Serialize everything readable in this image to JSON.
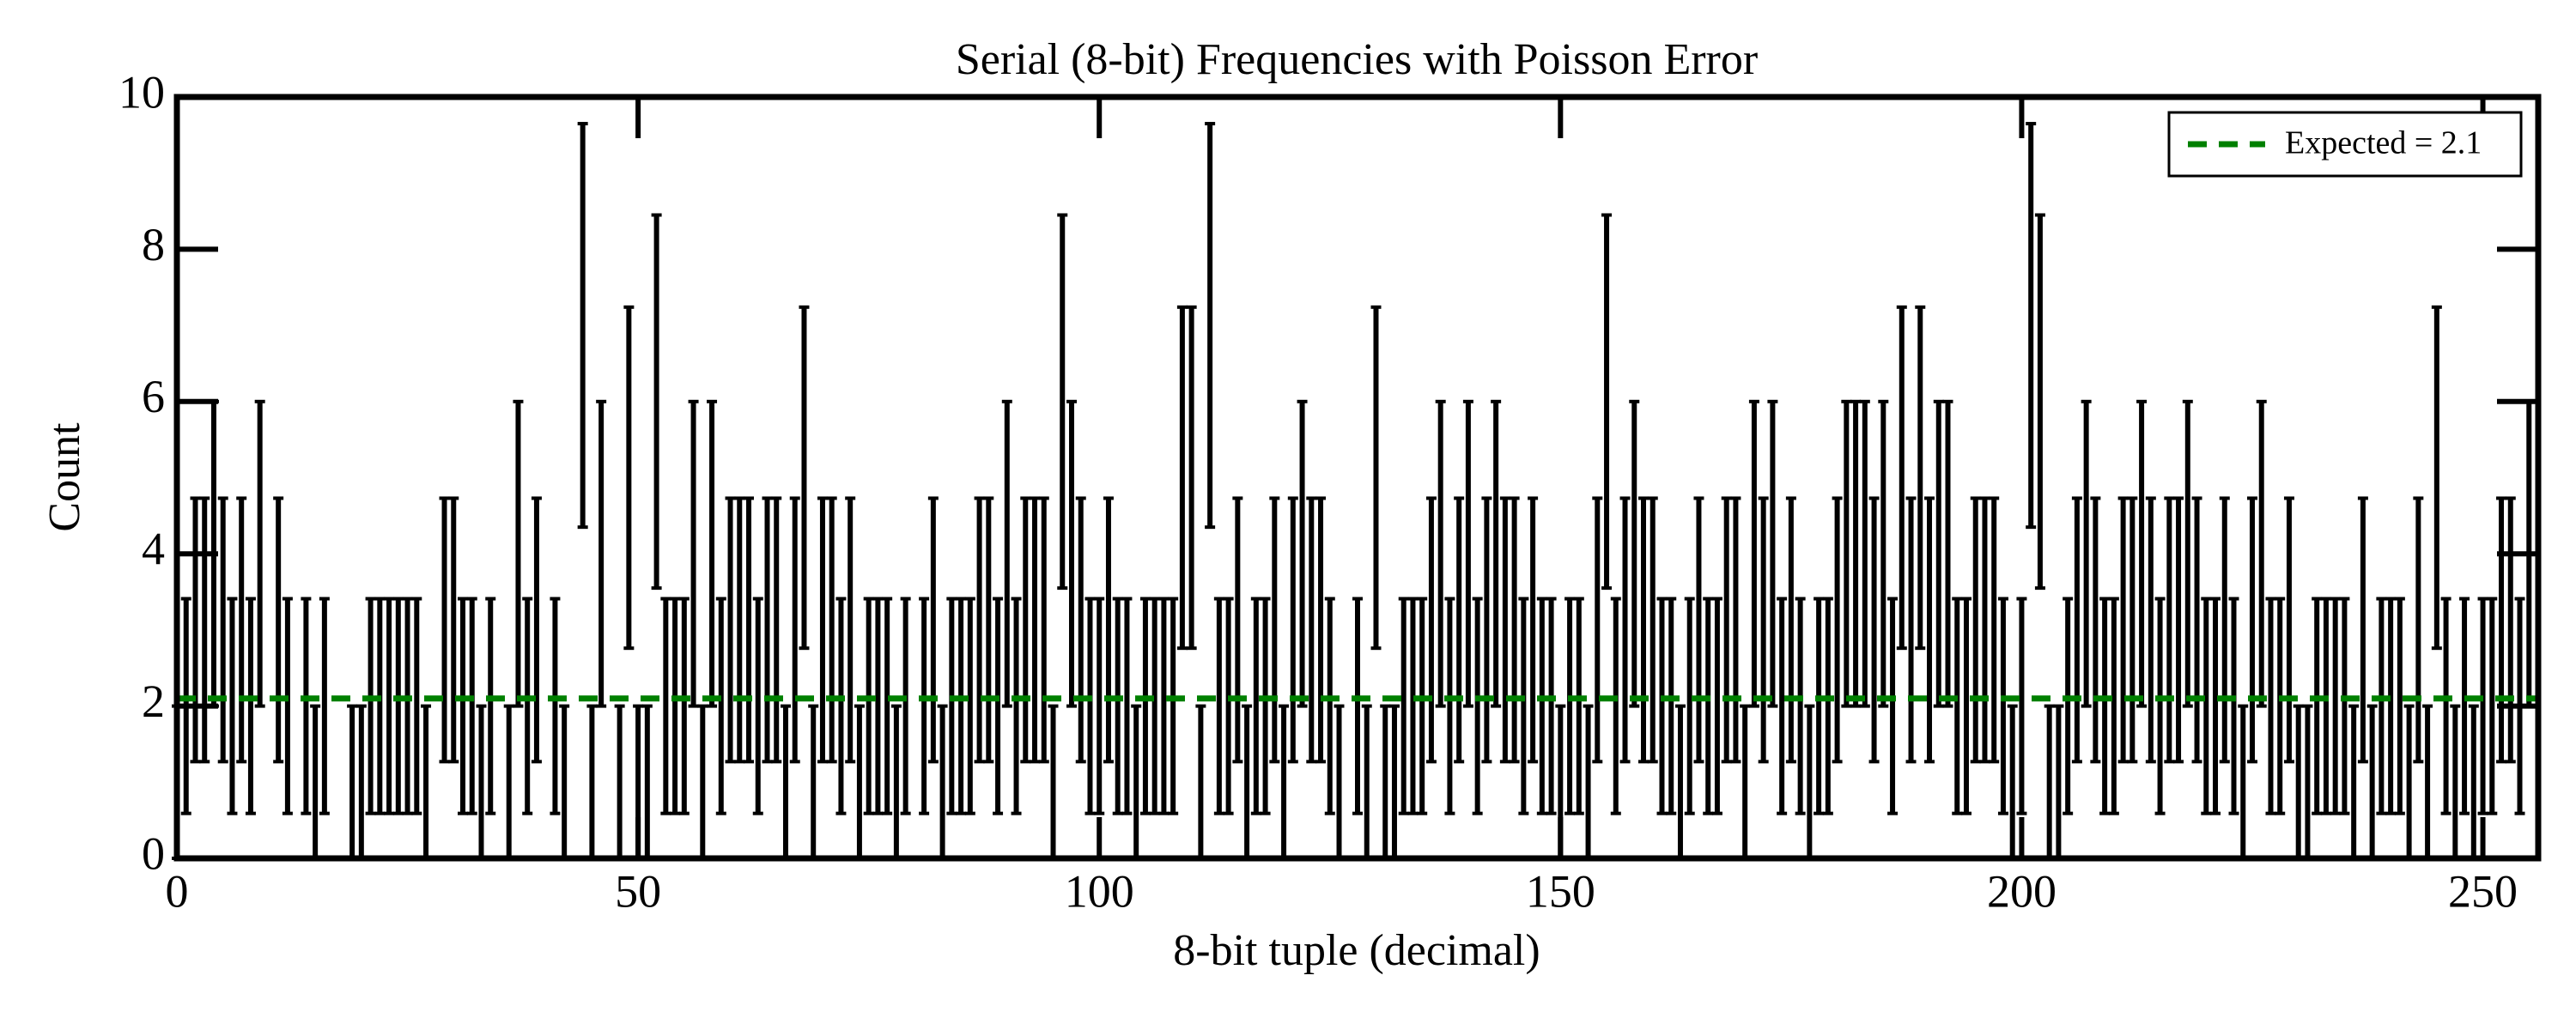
{
  "chart_data": {
    "type": "errorbar",
    "title": "Serial (8-bit) Frequencies with Poisson Error",
    "xlabel": "8-bit tuple (decimal)",
    "ylabel": "Count",
    "xlim": [
      0,
      256
    ],
    "ylim": [
      0,
      10
    ],
    "xticks": [
      0,
      50,
      100,
      150,
      200,
      250
    ],
    "yticks": [
      0,
      2,
      4,
      6,
      8,
      10
    ],
    "color": "#000000",
    "legend": "upper right",
    "reference": {
      "value": 2.1,
      "label": "Expected = 2.1",
      "color": "#008000"
    },
    "x": [
      0,
      1,
      2,
      3,
      4,
      5,
      6,
      7,
      8,
      9,
      10,
      11,
      12,
      13,
      14,
      15,
      16,
      17,
      18,
      19,
      20,
      21,
      22,
      23,
      24,
      25,
      26,
      27,
      28,
      29,
      30,
      31,
      32,
      33,
      34,
      35,
      36,
      37,
      38,
      39,
      40,
      41,
      42,
      43,
      44,
      45,
      46,
      47,
      48,
      49,
      50,
      51,
      52,
      53,
      54,
      55,
      56,
      57,
      58,
      59,
      60,
      61,
      62,
      63,
      64,
      65,
      66,
      67,
      68,
      69,
      70,
      71,
      72,
      73,
      74,
      75,
      76,
      77,
      78,
      79,
      80,
      81,
      82,
      83,
      84,
      85,
      86,
      87,
      88,
      89,
      90,
      91,
      92,
      93,
      94,
      95,
      96,
      97,
      98,
      99,
      100,
      101,
      102,
      103,
      104,
      105,
      106,
      107,
      108,
      109,
      110,
      111,
      112,
      113,
      114,
      115,
      116,
      117,
      118,
      119,
      120,
      121,
      122,
      123,
      124,
      125,
      126,
      127,
      128,
      129,
      130,
      131,
      132,
      133,
      134,
      135,
      136,
      137,
      138,
      139,
      140,
      141,
      142,
      143,
      144,
      145,
      146,
      147,
      148,
      149,
      150,
      151,
      152,
      153,
      154,
      155,
      156,
      157,
      158,
      159,
      160,
      161,
      162,
      163,
      164,
      165,
      166,
      167,
      168,
      169,
      170,
      171,
      172,
      173,
      174,
      175,
      176,
      177,
      178,
      179,
      180,
      181,
      182,
      183,
      184,
      185,
      186,
      187,
      188,
      189,
      190,
      191,
      192,
      193,
      194,
      195,
      196,
      197,
      198,
      199,
      200,
      201,
      202,
      203,
      204,
      205,
      206,
      207,
      208,
      209,
      210,
      211,
      212,
      213,
      214,
      215,
      216,
      217,
      218,
      219,
      220,
      221,
      222,
      223,
      224,
      225,
      226,
      227,
      228,
      229,
      230,
      231,
      232,
      233,
      234,
      235,
      236,
      237,
      238,
      239,
      240,
      241,
      242,
      243,
      244,
      245,
      246,
      247,
      248,
      249,
      250,
      251,
      252,
      253,
      254,
      255
    ],
    "values": [
      1,
      2,
      3,
      3,
      4,
      3,
      2,
      3,
      2,
      4,
      0,
      3,
      2,
      0,
      2,
      1,
      2,
      0,
      0,
      1,
      1,
      2,
      2,
      2,
      2,
      2,
      2,
      1,
      0,
      3,
      3,
      2,
      2,
      1,
      2,
      0,
      1,
      4,
      2,
      3,
      0,
      2,
      1,
      0,
      7,
      1,
      4,
      0,
      1,
      5,
      1,
      1,
      6,
      2,
      2,
      2,
      4,
      1,
      4,
      2,
      3,
      3,
      3,
      2,
      3,
      3,
      1,
      3,
      5,
      1,
      3,
      3,
      2,
      3,
      1,
      2,
      2,
      2,
      1,
      2,
      0,
      2,
      3,
      1,
      2,
      2,
      2,
      3,
      3,
      2,
      4,
      2,
      3,
      3,
      3,
      1,
      6,
      4,
      3,
      2,
      2,
      3,
      2,
      2,
      1,
      2,
      2,
      2,
      2,
      5,
      5,
      1,
      7,
      2,
      2,
      3,
      1,
      2,
      2,
      3,
      1,
      3,
      4,
      3,
      3,
      2,
      1,
      0,
      2,
      1,
      5,
      1,
      1,
      2,
      2,
      2,
      3,
      4,
      2,
      3,
      4,
      2,
      3,
      4,
      3,
      3,
      2,
      3,
      2,
      2,
      1,
      2,
      2,
      1,
      3,
      6,
      2,
      3,
      4,
      3,
      3,
      2,
      2,
      1,
      2,
      3,
      2,
      2,
      3,
      3,
      1,
      4,
      3,
      4,
      2,
      3,
      2,
      1,
      2,
      2,
      3,
      4,
      4,
      4,
      3,
      4,
      2,
      5,
      3,
      5,
      3,
      4,
      4,
      2,
      2,
      3,
      3,
      3,
      2,
      1,
      2,
      7,
      6,
      1,
      1,
      2,
      3,
      4,
      3,
      2,
      2,
      3,
      3,
      4,
      3,
      2,
      3,
      3,
      4,
      3,
      2,
      2,
      3,
      2,
      1,
      3,
      4,
      2,
      2,
      3,
      1,
      1,
      2,
      2,
      2,
      2,
      1,
      3,
      1,
      2,
      2,
      2,
      1,
      3,
      1,
      5,
      2,
      1,
      2,
      1,
      2,
      2,
      3,
      3,
      2,
      4
    ],
    "errors": [
      1,
      1.41,
      1.73,
      1.73,
      2,
      1.73,
      1.41,
      1.73,
      1.41,
      2,
      0,
      1.73,
      1.41,
      0,
      1.41,
      1,
      1.41,
      0,
      0,
      1,
      1,
      1.41,
      1.41,
      1.41,
      1.41,
      1.41,
      1.41,
      1,
      0,
      1.73,
      1.73,
      1.41,
      1.41,
      1,
      1.41,
      0,
      1,
      2,
      1.41,
      1.73,
      0,
      1.41,
      1,
      0,
      2.65,
      1,
      2,
      0,
      1,
      2.24,
      1,
      1,
      2.45,
      1.41,
      1.41,
      1.41,
      2,
      1,
      2,
      1.41,
      1.73,
      1.73,
      1.73,
      1.41,
      1.73,
      1.73,
      1,
      1.73,
      2.24,
      1,
      1.73,
      1.73,
      1.41,
      1.73,
      1,
      1.41,
      1.41,
      1.41,
      1,
      1.41,
      0,
      1.41,
      1.73,
      1,
      1.41,
      1.41,
      1.41,
      1.73,
      1.73,
      1.41,
      2,
      1.41,
      1.73,
      1.73,
      1.73,
      1,
      2.45,
      2,
      1.73,
      1.41,
      1.41,
      1.73,
      1.41,
      1.41,
      1,
      1.41,
      1.41,
      1.41,
      1.41,
      2.24,
      2.24,
      1,
      2.65,
      1.41,
      1.41,
      1.73,
      1,
      1.41,
      1.41,
      1.73,
      1,
      1.73,
      2,
      1.73,
      1.73,
      1.41,
      1,
      0,
      1.41,
      1,
      2.24,
      1,
      1,
      1.41,
      1.41,
      1.41,
      1.73,
      2,
      1.41,
      1.73,
      2,
      1.41,
      1.73,
      2,
      1.73,
      1.73,
      1.41,
      1.73,
      1.41,
      1.41,
      1,
      1.41,
      1.41,
      1,
      1.73,
      2.45,
      1.41,
      1.73,
      2,
      1.73,
      1.73,
      1.41,
      1.41,
      1,
      1.41,
      1.73,
      1.41,
      1.41,
      1.73,
      1.73,
      1,
      2,
      1.73,
      2,
      1.41,
      1.73,
      1.41,
      1,
      1.41,
      1.41,
      1.73,
      2,
      2,
      2,
      1.73,
      2,
      1.41,
      2.24,
      1.73,
      2.24,
      1.73,
      2,
      2,
      1.41,
      1.41,
      1.73,
      1.73,
      1.73,
      1.41,
      1,
      1.41,
      2.65,
      2.45,
      1,
      1,
      1.41,
      1.73,
      2,
      1.73,
      1.41,
      1.41,
      1.73,
      1.73,
      2,
      1.73,
      1.41,
      1.73,
      1.73,
      2,
      1.73,
      1.41,
      1.41,
      1.73,
      1.41,
      1,
      1.73,
      2,
      1.41,
      1.41,
      1.73,
      1,
      1,
      1.41,
      1.41,
      1.41,
      1.41,
      1,
      1.73,
      1,
      1.41,
      1.41,
      1.41,
      1,
      1.73,
      1,
      2.24,
      1.41,
      1,
      1.41,
      1,
      1.41,
      1.41,
      1.73,
      1.73,
      1.41,
      2
    ]
  }
}
